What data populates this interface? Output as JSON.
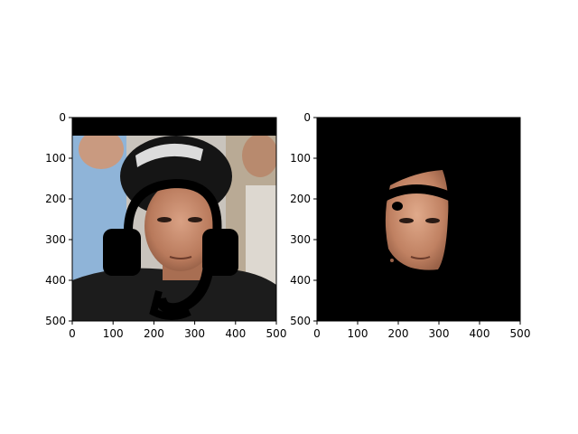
{
  "chart_data": [
    {
      "type": "image",
      "image_description": "photo of a man with black occlusion mask (headphones shape) over it",
      "xlim": [
        0,
        500
      ],
      "ylim": [
        500,
        0
      ],
      "xticks": [
        0,
        100,
        200,
        300,
        400,
        500
      ],
      "yticks": [
        0,
        100,
        200,
        300,
        400,
        500
      ],
      "xtick_labels": [
        "0",
        "100",
        "200",
        "300",
        "400",
        "500"
      ],
      "ytick_labels": [
        "0",
        "100",
        "200",
        "300",
        "400",
        "500"
      ]
    },
    {
      "type": "image",
      "image_description": "segmented face on black background with black band across forehead",
      "xlim": [
        0,
        500
      ],
      "ylim": [
        500,
        0
      ],
      "xticks": [
        0,
        100,
        200,
        300,
        400,
        500
      ],
      "yticks": [
        0,
        100,
        200,
        300,
        400,
        500
      ],
      "xtick_labels": [
        "0",
        "100",
        "200",
        "300",
        "400",
        "500"
      ],
      "ytick_labels": [
        "0",
        "100",
        "200",
        "300",
        "400",
        "500"
      ]
    }
  ]
}
